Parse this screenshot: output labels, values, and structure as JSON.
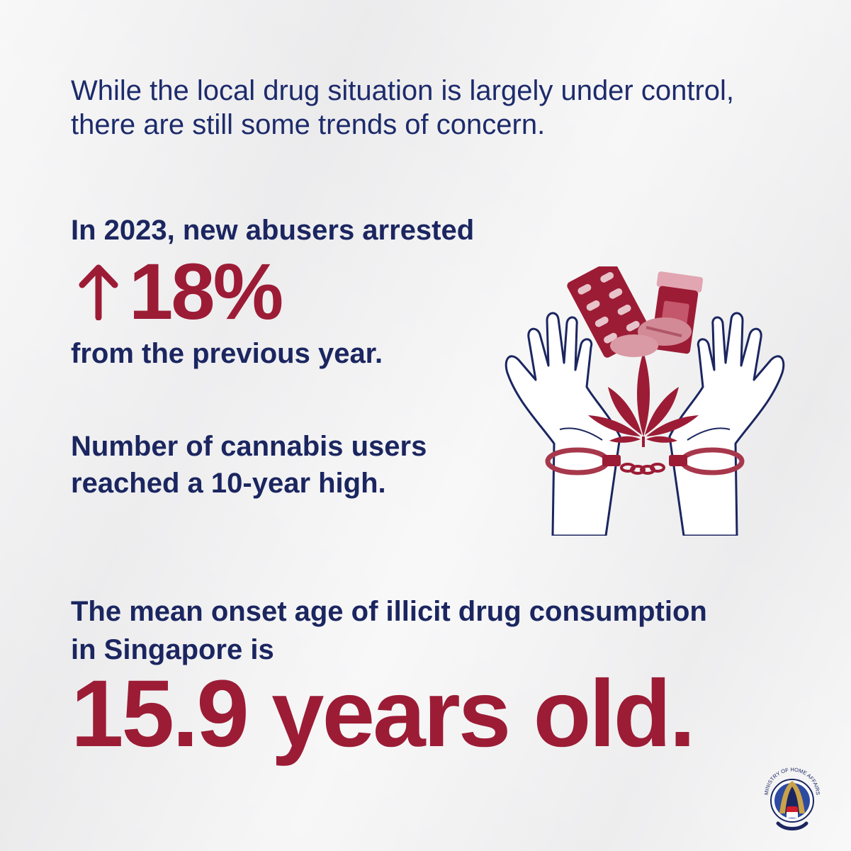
{
  "intro": {
    "text": "While the local drug situation is largely under control, there are still some trends of concern."
  },
  "stat_new_abusers": {
    "heading": "In 2023, new abusers arrested",
    "change_icon": "up-arrow-icon",
    "value": "18%",
    "tail": "from the previous year."
  },
  "stat_cannabis": {
    "text": "Number of cannabis users reached a 10-year high."
  },
  "stat_onset_age": {
    "heading": "The mean onset age of illicit drug consumption in Singapore is",
    "value": "15.9 years old."
  },
  "illustration": {
    "icon": "hands-drugs-handcuffs-icon"
  },
  "logo": {
    "icon": "ministry-of-home-affairs-crest-icon",
    "text": "MINISTRY OF HOME AFFAIRS"
  },
  "colors": {
    "navy": "#1b2660",
    "maroon": "#9c1c35",
    "background": "#f2f2f3"
  }
}
